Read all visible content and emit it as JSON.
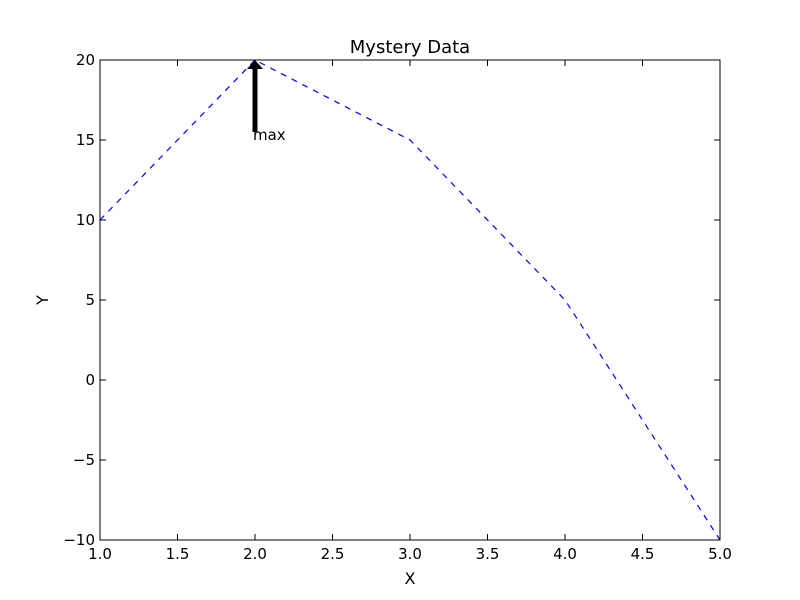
{
  "chart_data": {
    "type": "line",
    "title": "Mystery Data",
    "xlabel": "X",
    "ylabel": "Y",
    "xlim": [
      1.0,
      5.0
    ],
    "ylim": [
      -10,
      20
    ],
    "x_ticks": [
      "1.0",
      "1.5",
      "2.0",
      "2.5",
      "3.0",
      "3.5",
      "4.0",
      "4.5",
      "5.0"
    ],
    "y_ticks": [
      "−10",
      "−5",
      "0",
      "5",
      "10",
      "15",
      "20"
    ],
    "x_tick_values": [
      1.0,
      1.5,
      2.0,
      2.5,
      3.0,
      3.5,
      4.0,
      4.5,
      5.0
    ],
    "y_tick_values": [
      -10,
      -5,
      0,
      5,
      10,
      15,
      20
    ],
    "series": [
      {
        "x": [
          1,
          2,
          3,
          4,
          5
        ],
        "y": [
          10,
          20,
          15,
          5,
          -10
        ],
        "color": "#0000ff",
        "linestyle": "dashed"
      }
    ],
    "annotations": [
      {
        "text": "max",
        "xy": [
          2,
          20
        ],
        "xytext": [
          2,
          15
        ],
        "arrow": "black"
      }
    ],
    "grid": false,
    "legend": false
  }
}
